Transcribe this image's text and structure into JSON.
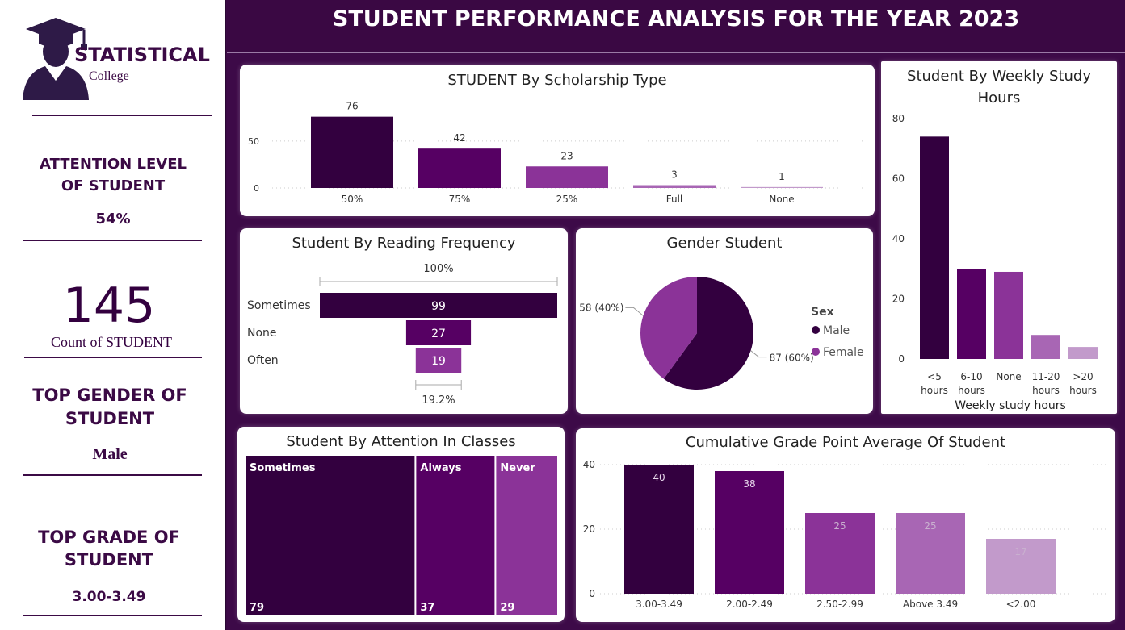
{
  "header": {
    "title": "STUDENT PERFORMANCE ANALYSIS FOR THE YEAR 2023"
  },
  "logo": {
    "name": "STATISTICAL",
    "sub": "College"
  },
  "kpis": {
    "attention_title": "ATTENTION LEVEL OF STUDENT",
    "attention_value": "54%",
    "count_value": "145",
    "count_label": "Count of STUDENT",
    "gender_title": "TOP GENDER OF STUDENT",
    "gender_value": "Male",
    "grade_title": "TOP GRADE OF STUDENT",
    "grade_value": "3.00-3.49"
  },
  "colors": {
    "c1": "#33003f",
    "c2": "#560063",
    "c3": "#8b3398",
    "c4": "#a866b4",
    "c5": "#c29acb"
  },
  "chart_data": [
    {
      "id": "scholarship",
      "type": "bar",
      "title": "STUDENT By Scholarship Type",
      "categories": [
        "50%",
        "75%",
        "25%",
        "Full",
        "None"
      ],
      "values": [
        76,
        42,
        23,
        3,
        1
      ],
      "yticks": [
        0,
        50
      ],
      "ylim": [
        0,
        80
      ],
      "grid": true
    },
    {
      "id": "study_hours",
      "type": "bar",
      "title": "Student By Weekly Study Hours",
      "categories": [
        [
          "<5",
          "hours"
        ],
        [
          "6-10",
          "hours"
        ],
        [
          "None"
        ],
        [
          "11-20",
          "hours"
        ],
        [
          ">20",
          "hours"
        ]
      ],
      "values": [
        74,
        30,
        29,
        8,
        4
      ],
      "yticks": [
        0,
        20,
        40,
        60,
        80
      ],
      "ylim": [
        0,
        80
      ],
      "xlabel": "Weekly study hours"
    },
    {
      "id": "reading",
      "type": "bar",
      "title": "Student By Reading Frequency",
      "categories": [
        "Sometimes",
        "None",
        "Often"
      ],
      "values": [
        99,
        27,
        19
      ],
      "top_label": "100%",
      "bottom_label": "19.2%"
    },
    {
      "id": "gender",
      "type": "pie",
      "title": "Gender Student",
      "labels": [
        "Male",
        "Female"
      ],
      "values": [
        87,
        58
      ],
      "slice_labels": [
        "87 (60%)",
        "58 (40%)"
      ],
      "legend_title": "Sex",
      "legend": "right"
    },
    {
      "id": "attention",
      "type": "heatmap",
      "title": "Student By Attention In Classes",
      "categories": [
        "Sometimes",
        "Always",
        "Never"
      ],
      "values": [
        79,
        37,
        29
      ]
    },
    {
      "id": "cgpa",
      "type": "bar",
      "title": "Cumulative Grade Point Average Of Student",
      "categories": [
        "3.00-3.49",
        "2.00-2.49",
        "2.50-2.99",
        "Above 3.49",
        "<2.00"
      ],
      "values": [
        40,
        38,
        25,
        25,
        17
      ],
      "yticks": [
        0,
        20,
        40
      ],
      "ylim": [
        0,
        40
      ],
      "grid": true
    }
  ]
}
